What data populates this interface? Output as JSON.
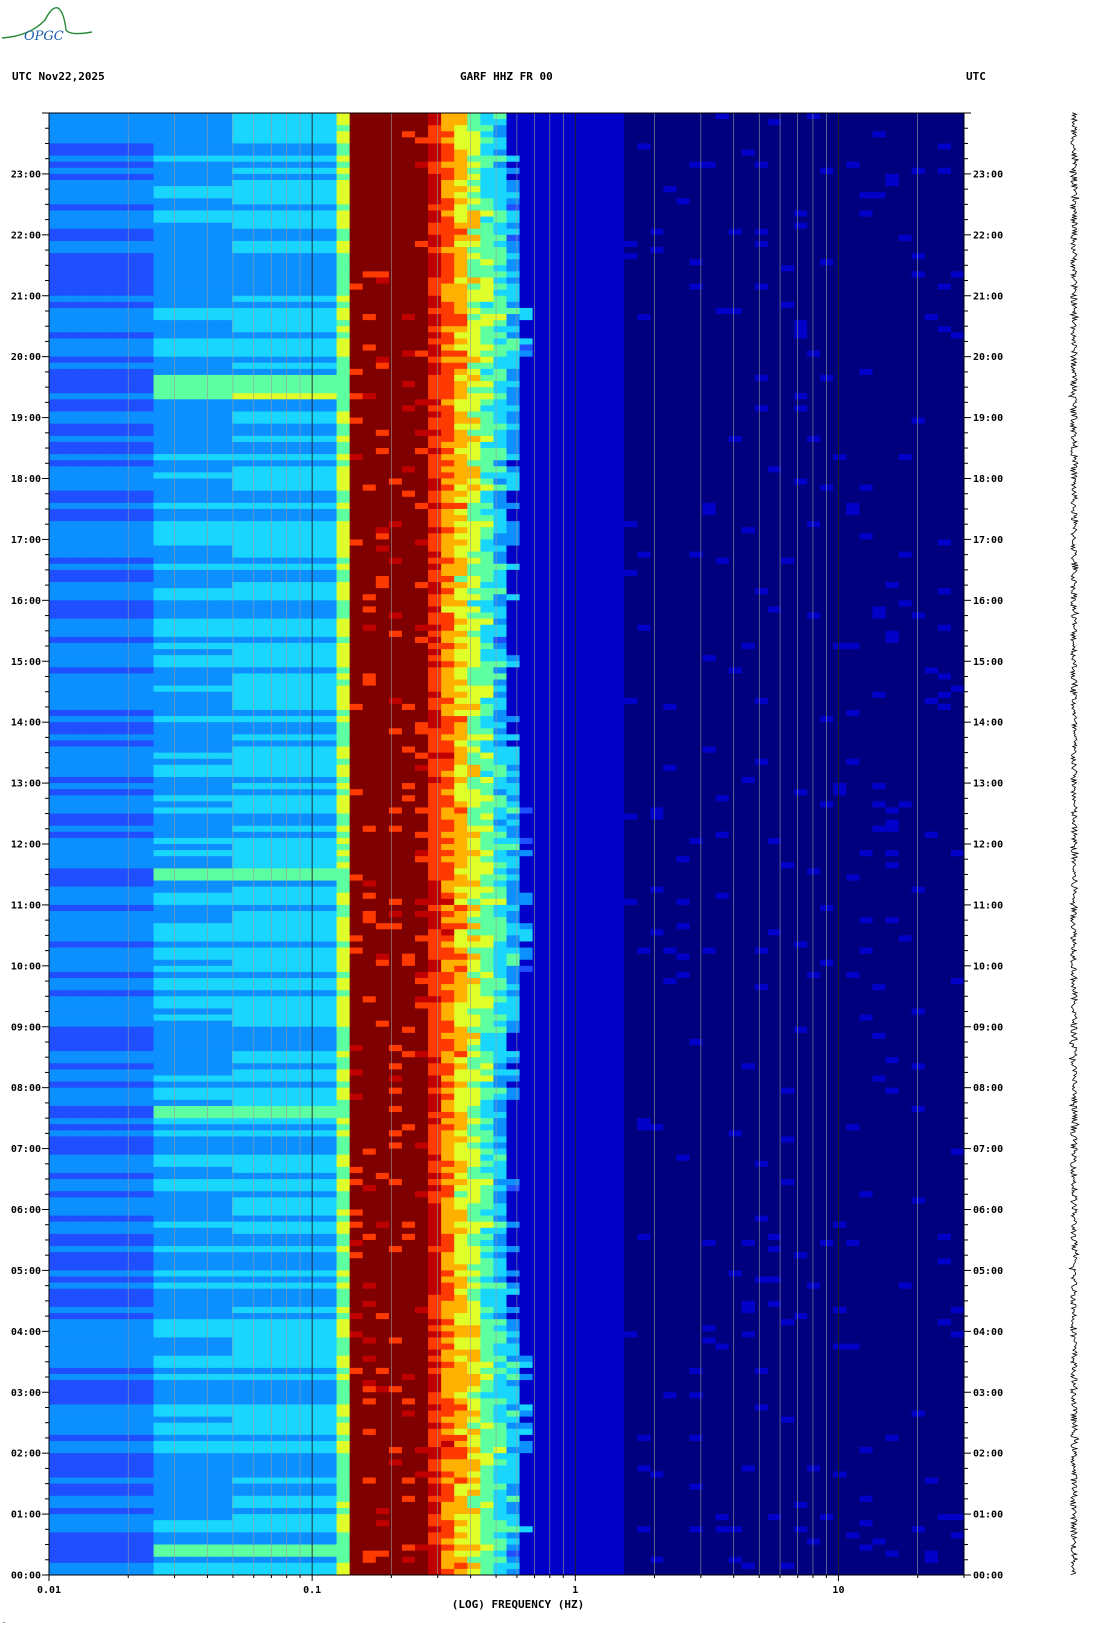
{
  "header": {
    "left": "UTC  Nov22,2025",
    "center": "GARF HHZ FR 00",
    "right": "UTC"
  },
  "logo": {
    "text": "OPGC",
    "name": "opgc-logo"
  },
  "colors": {
    "background": "#ffffff",
    "colormap": [
      "#00007f",
      "#0000c8",
      "#1f4fff",
      "#0d90ff",
      "#19d6ff",
      "#5dffa0",
      "#dfff2a",
      "#ffb000",
      "#ff3a00",
      "#c00000",
      "#7f0000"
    ],
    "gridline": "#9a9a9a",
    "trace": "#000000"
  },
  "chart_data": {
    "type": "heatmap",
    "title": "GARF HHZ FR 00",
    "xlabel": "(LOG) FREQUENCY (HZ)",
    "ylabel": "UTC",
    "x_scale": "log",
    "xlim": [
      0.01,
      30
    ],
    "x_tick_values": [
      0.01,
      0.1,
      1,
      10
    ],
    "x_tick_labels": [
      "0.01",
      "0.1",
      "1",
      "10"
    ],
    "ylim_hours": [
      0,
      24
    ],
    "y_tick_labels": [
      "00:00",
      "01:00",
      "02:00",
      "03:00",
      "04:00",
      "05:00",
      "06:00",
      "07:00",
      "08:00",
      "09:00",
      "10:00",
      "11:00",
      "12:00",
      "13:00",
      "14:00",
      "15:00",
      "16:00",
      "17:00",
      "18:00",
      "19:00",
      "20:00",
      "21:00",
      "22:00",
      "23:00"
    ],
    "grid": true,
    "microseism_band_hz": [
      0.14,
      0.3
    ],
    "secondary_band_hz": [
      0.12,
      0.14
    ],
    "energy_edge_hz": 0.6,
    "bright_events_hours": [
      19.5,
      11.5,
      7.6,
      0.4
    ],
    "right_panel": "seismogram trace"
  }
}
